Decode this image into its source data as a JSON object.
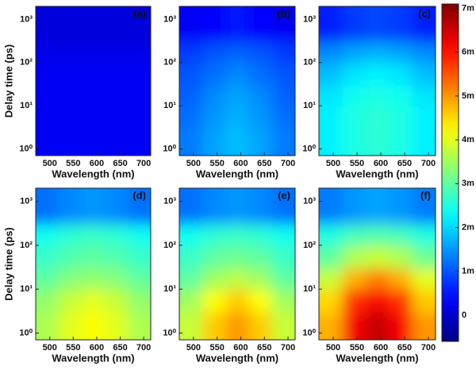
{
  "chart_data": [
    {
      "type": "heatmap",
      "label": "(a)",
      "xlabel": "Wavelength (nm)",
      "ylabel": "Delay time (ps)",
      "log_y": true,
      "xlim": [
        470,
        715
      ],
      "ylim": [
        0.7,
        2000
      ],
      "xticks": [
        500,
        550,
        600,
        650,
        700
      ],
      "yticks": [
        {
          "value": 1,
          "label": "10⁰"
        },
        {
          "value": 10,
          "label": "10¹"
        },
        {
          "value": 100,
          "label": "10²"
        },
        {
          "value": 1000,
          "label": "10³"
        }
      ],
      "xbins": [
        470,
        519,
        568,
        617,
        666,
        715
      ],
      "ybins": [
        0.7,
        3,
        10,
        30,
        100,
        300,
        2000
      ],
      "z": [
        [
          0.0003,
          0.0003,
          0.0003,
          0.0003,
          0.0003
        ],
        [
          0.0003,
          0.0003,
          0.0003,
          0.0003,
          0.0003
        ],
        [
          0.0003,
          0.0003,
          0.0003,
          0.0003,
          0.0003
        ],
        [
          0.0003,
          0.0003,
          0.0003,
          0.0003,
          0.0003
        ],
        [
          0.0002,
          0.0002,
          0.0002,
          0.0002,
          0.0002
        ],
        [
          0.0001,
          0.0001,
          0.0001,
          0.0001,
          0.0001
        ]
      ]
    },
    {
      "type": "heatmap",
      "label": "(b)",
      "xlabel": "Wavelength (nm)",
      "log_y": true,
      "xlim": [
        470,
        715
      ],
      "ylim": [
        0.7,
        2000
      ],
      "xticks": [
        500,
        550,
        600,
        650,
        700
      ],
      "yticks": [
        {
          "value": 1,
          "label": "10⁰"
        },
        {
          "value": 10,
          "label": "10¹"
        },
        {
          "value": 100,
          "label": "10²"
        },
        {
          "value": 1000,
          "label": "10³"
        }
      ],
      "xbins": [
        470,
        519,
        568,
        617,
        666,
        715
      ],
      "ybins": [
        0.7,
        3,
        10,
        30,
        100,
        300,
        2000
      ],
      "z": [
        [
          0.0013,
          0.0016,
          0.0018,
          0.0016,
          0.0013
        ],
        [
          0.0012,
          0.0015,
          0.0017,
          0.0015,
          0.0012
        ],
        [
          0.0011,
          0.0014,
          0.0016,
          0.0014,
          0.0011
        ],
        [
          0.001,
          0.0012,
          0.0014,
          0.0012,
          0.001
        ],
        [
          0.0008,
          0.001,
          0.0011,
          0.001,
          0.0008
        ],
        [
          0.0003,
          0.0004,
          0.0005,
          0.0004,
          0.0003
        ]
      ]
    },
    {
      "type": "heatmap",
      "label": "(c)",
      "xlabel": "Wavelength (nm)",
      "log_y": true,
      "xlim": [
        470,
        715
      ],
      "ylim": [
        0.7,
        2000
      ],
      "xticks": [
        500,
        550,
        600,
        650,
        700
      ],
      "yticks": [
        {
          "value": 1,
          "label": "10⁰"
        },
        {
          "value": 10,
          "label": "10¹"
        },
        {
          "value": 100,
          "label": "10²"
        },
        {
          "value": 1000,
          "label": "10³"
        }
      ],
      "xbins": [
        470,
        519,
        568,
        617,
        666,
        715
      ],
      "ybins": [
        0.7,
        3,
        10,
        30,
        100,
        300,
        2000
      ],
      "z": [
        [
          0.0022,
          0.0025,
          0.0026,
          0.0025,
          0.0022
        ],
        [
          0.0022,
          0.0025,
          0.0026,
          0.0025,
          0.0022
        ],
        [
          0.0021,
          0.0024,
          0.0025,
          0.0024,
          0.0021
        ],
        [
          0.0018,
          0.0021,
          0.0022,
          0.0021,
          0.0018
        ],
        [
          0.0014,
          0.0016,
          0.0017,
          0.0016,
          0.0014
        ],
        [
          0.0006,
          0.0008,
          0.0009,
          0.0008,
          0.0006
        ]
      ]
    },
    {
      "type": "heatmap",
      "label": "(d)",
      "xlabel": "Wavelength (nm)",
      "ylabel": "Delay time (ps)",
      "log_y": true,
      "xlim": [
        470,
        715
      ],
      "ylim": [
        0.7,
        2000
      ],
      "xticks": [
        500,
        550,
        600,
        650,
        700
      ],
      "yticks": [
        {
          "value": 1,
          "label": "10⁰"
        },
        {
          "value": 10,
          "label": "10¹"
        },
        {
          "value": 100,
          "label": "10²"
        },
        {
          "value": 1000,
          "label": "10³"
        }
      ],
      "xbins": [
        470,
        519,
        568,
        617,
        666,
        715
      ],
      "ybins": [
        0.7,
        3,
        10,
        30,
        100,
        300,
        2000
      ],
      "z": [
        [
          0.0036,
          0.004,
          0.0042,
          0.004,
          0.0036
        ],
        [
          0.0034,
          0.0038,
          0.004,
          0.0038,
          0.0034
        ],
        [
          0.003,
          0.0033,
          0.0034,
          0.0033,
          0.003
        ],
        [
          0.0027,
          0.0029,
          0.003,
          0.0029,
          0.0027
        ],
        [
          0.0024,
          0.0026,
          0.0027,
          0.0026,
          0.0024
        ],
        [
          0.0012,
          0.0014,
          0.0015,
          0.0014,
          0.0012
        ]
      ]
    },
    {
      "type": "heatmap",
      "label": "(e)",
      "xlabel": "Wavelength (nm)",
      "log_y": true,
      "xlim": [
        470,
        715
      ],
      "ylim": [
        0.7,
        2000
      ],
      "xticks": [
        500,
        550,
        600,
        650,
        700
      ],
      "yticks": [
        {
          "value": 1,
          "label": "10⁰"
        },
        {
          "value": 10,
          "label": "10¹"
        },
        {
          "value": 100,
          "label": "10²"
        },
        {
          "value": 1000,
          "label": "10³"
        }
      ],
      "xbins": [
        470,
        519,
        568,
        617,
        666,
        715
      ],
      "ybins": [
        0.7,
        3,
        10,
        30,
        100,
        300,
        2000
      ],
      "z": [
        [
          0.0038,
          0.0046,
          0.005,
          0.0046,
          0.0038
        ],
        [
          0.0035,
          0.0042,
          0.0046,
          0.0042,
          0.0035
        ],
        [
          0.003,
          0.0035,
          0.0037,
          0.0035,
          0.003
        ],
        [
          0.0027,
          0.003,
          0.0031,
          0.003,
          0.0027
        ],
        [
          0.0024,
          0.0026,
          0.0027,
          0.0026,
          0.0024
        ],
        [
          0.0012,
          0.0014,
          0.0015,
          0.0014,
          0.0012
        ]
      ]
    },
    {
      "type": "heatmap",
      "label": "(f)",
      "xlabel": "Wavelength (nm)",
      "log_y": true,
      "xlim": [
        470,
        715
      ],
      "ylim": [
        0.7,
        2000
      ],
      "xticks": [
        500,
        550,
        600,
        650,
        700
      ],
      "yticks": [
        {
          "value": 1,
          "label": "10⁰"
        },
        {
          "value": 10,
          "label": "10¹"
        },
        {
          "value": 100,
          "label": "10²"
        },
        {
          "value": 1000,
          "label": "10³"
        }
      ],
      "xbins": [
        470,
        519,
        568,
        617,
        666,
        715
      ],
      "ybins": [
        0.7,
        3,
        10,
        30,
        100,
        300,
        2000
      ],
      "z": [
        [
          0.0048,
          0.0062,
          0.0066,
          0.0062,
          0.005
        ],
        [
          0.0045,
          0.0058,
          0.0062,
          0.0058,
          0.0046
        ],
        [
          0.0038,
          0.0048,
          0.0052,
          0.0048,
          0.004
        ],
        [
          0.003,
          0.0036,
          0.0038,
          0.0036,
          0.0031
        ],
        [
          0.0025,
          0.0028,
          0.0029,
          0.0028,
          0.0025
        ],
        [
          0.0013,
          0.0015,
          0.0016,
          0.0015,
          0.0013
        ]
      ]
    }
  ],
  "colorbar": {
    "colormap": "jet",
    "zlim": [
      -0.0006,
      0.0071
    ],
    "zticks": [
      0,
      {
        "value": 0.001,
        "label": "1m"
      },
      {
        "value": 0.002,
        "label": "2m"
      },
      {
        "value": 0.003,
        "label": "3m"
      },
      {
        "value": 0.004,
        "label": "4m"
      },
      {
        "value": 0.005,
        "label": "5m"
      },
      {
        "value": 0.006,
        "label": "6m"
      },
      {
        "value": 0.007,
        "label": "7m"
      }
    ]
  }
}
